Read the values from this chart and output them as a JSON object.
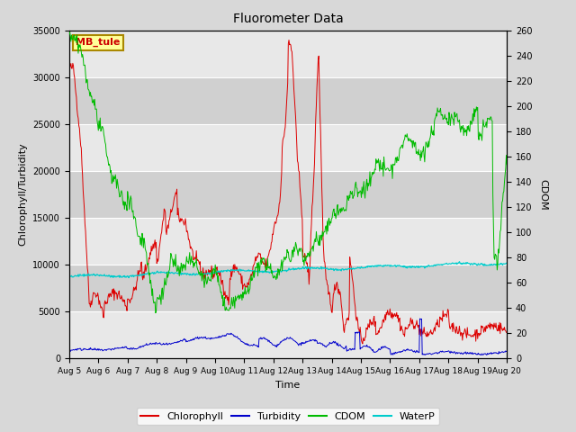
{
  "title": "Fluorometer Data",
  "xlabel": "Time",
  "ylabel_left": "Chlorophyll/Turbidity",
  "ylabel_right": "CDOM",
  "ylim_left": [
    0,
    35000
  ],
  "ylim_right": [
    0,
    260
  ],
  "annotation_text": "MB_tule",
  "annotation_box_color": "#FFFF99",
  "annotation_box_edge": "#AA8800",
  "x_tick_labels": [
    "Aug 5",
    "Aug 6",
    "Aug 7",
    "Aug 8",
    "Aug 9",
    "Aug 10",
    "Aug 11",
    "Aug 12",
    "Aug 13",
    "Aug 14",
    "Aug 15",
    "Aug 16",
    "Aug 17",
    "Aug 18",
    "Aug 19",
    "Aug 20"
  ],
  "legend_labels": [
    "Chlorophyll",
    "Turbidity",
    "CDOM",
    "WaterP"
  ],
  "colors": {
    "chlorophyll": "#DD0000",
    "turbidity": "#0000CC",
    "cdom": "#00BB00",
    "waterp": "#00CCCC"
  },
  "fig_bg": "#D8D8D8",
  "plot_bg_light": "#E8E8E8",
  "plot_bg_dark": "#D0D0D0",
  "grid_color": "#FFFFFF"
}
